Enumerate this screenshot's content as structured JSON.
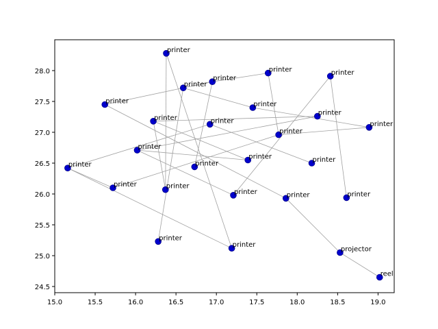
{
  "chart_data": {
    "type": "scatter",
    "title": "",
    "xlabel": "",
    "ylabel": "",
    "xlim": [
      15.0,
      19.2
    ],
    "ylim": [
      24.4,
      28.5
    ],
    "xticks": [
      "15.0",
      "15.5",
      "16.0",
      "16.5",
      "17.0",
      "17.5",
      "18.0",
      "18.5",
      "19.0"
    ],
    "yticks": [
      "24.5",
      "25.0",
      "25.5",
      "26.0",
      "26.5",
      "27.0",
      "27.5",
      "28.0"
    ],
    "grid": false,
    "point_color": "#0000cc",
    "edge_color": "#a0a0a0",
    "points": [
      {
        "x": 16.38,
        "y": 28.28,
        "label": "printer"
      },
      {
        "x": 16.95,
        "y": 27.82,
        "label": "printer"
      },
      {
        "x": 17.64,
        "y": 27.96,
        "label": "printer"
      },
      {
        "x": 18.41,
        "y": 27.91,
        "label": "printer"
      },
      {
        "x": 16.59,
        "y": 27.72,
        "label": "printer"
      },
      {
        "x": 15.62,
        "y": 27.45,
        "label": "printer"
      },
      {
        "x": 17.45,
        "y": 27.4,
        "label": "printer"
      },
      {
        "x": 18.25,
        "y": 27.26,
        "label": "printer"
      },
      {
        "x": 16.22,
        "y": 27.18,
        "label": "printer"
      },
      {
        "x": 16.92,
        "y": 27.13,
        "label": "printer"
      },
      {
        "x": 18.89,
        "y": 27.08,
        "label": "printer"
      },
      {
        "x": 17.77,
        "y": 26.96,
        "label": "printer"
      },
      {
        "x": 16.02,
        "y": 26.71,
        "label": "printer"
      },
      {
        "x": 17.39,
        "y": 26.55,
        "label": "printer"
      },
      {
        "x": 18.18,
        "y": 26.5,
        "label": "printer"
      },
      {
        "x": 16.73,
        "y": 26.44,
        "label": "printer"
      },
      {
        "x": 15.16,
        "y": 26.42,
        "label": "printer"
      },
      {
        "x": 15.72,
        "y": 26.1,
        "label": "printer"
      },
      {
        "x": 16.37,
        "y": 26.07,
        "label": "printer"
      },
      {
        "x": 17.21,
        "y": 25.98,
        "label": "printer"
      },
      {
        "x": 17.86,
        "y": 25.93,
        "label": "printer"
      },
      {
        "x": 18.61,
        "y": 25.94,
        "label": "printer"
      },
      {
        "x": 16.28,
        "y": 25.23,
        "label": "printer"
      },
      {
        "x": 17.19,
        "y": 25.12,
        "label": "printer"
      },
      {
        "x": 18.53,
        "y": 25.05,
        "label": "projector"
      },
      {
        "x": 19.02,
        "y": 24.65,
        "label": "reel"
      }
    ],
    "edges": [
      [
        0,
        18
      ],
      [
        0,
        23
      ],
      [
        1,
        4
      ],
      [
        1,
        2
      ],
      [
        1,
        15
      ],
      [
        2,
        11
      ],
      [
        3,
        21
      ],
      [
        3,
        19
      ],
      [
        4,
        5
      ],
      [
        4,
        6
      ],
      [
        4,
        22
      ],
      [
        5,
        20
      ],
      [
        6,
        10
      ],
      [
        7,
        8
      ],
      [
        7,
        12
      ],
      [
        8,
        13
      ],
      [
        9,
        14
      ],
      [
        9,
        16
      ],
      [
        10,
        11
      ],
      [
        11,
        17
      ],
      [
        12,
        13
      ],
      [
        12,
        19
      ],
      [
        16,
        23
      ],
      [
        16,
        17
      ],
      [
        18,
        8
      ],
      [
        20,
        24
      ],
      [
        24,
        25
      ]
    ]
  }
}
